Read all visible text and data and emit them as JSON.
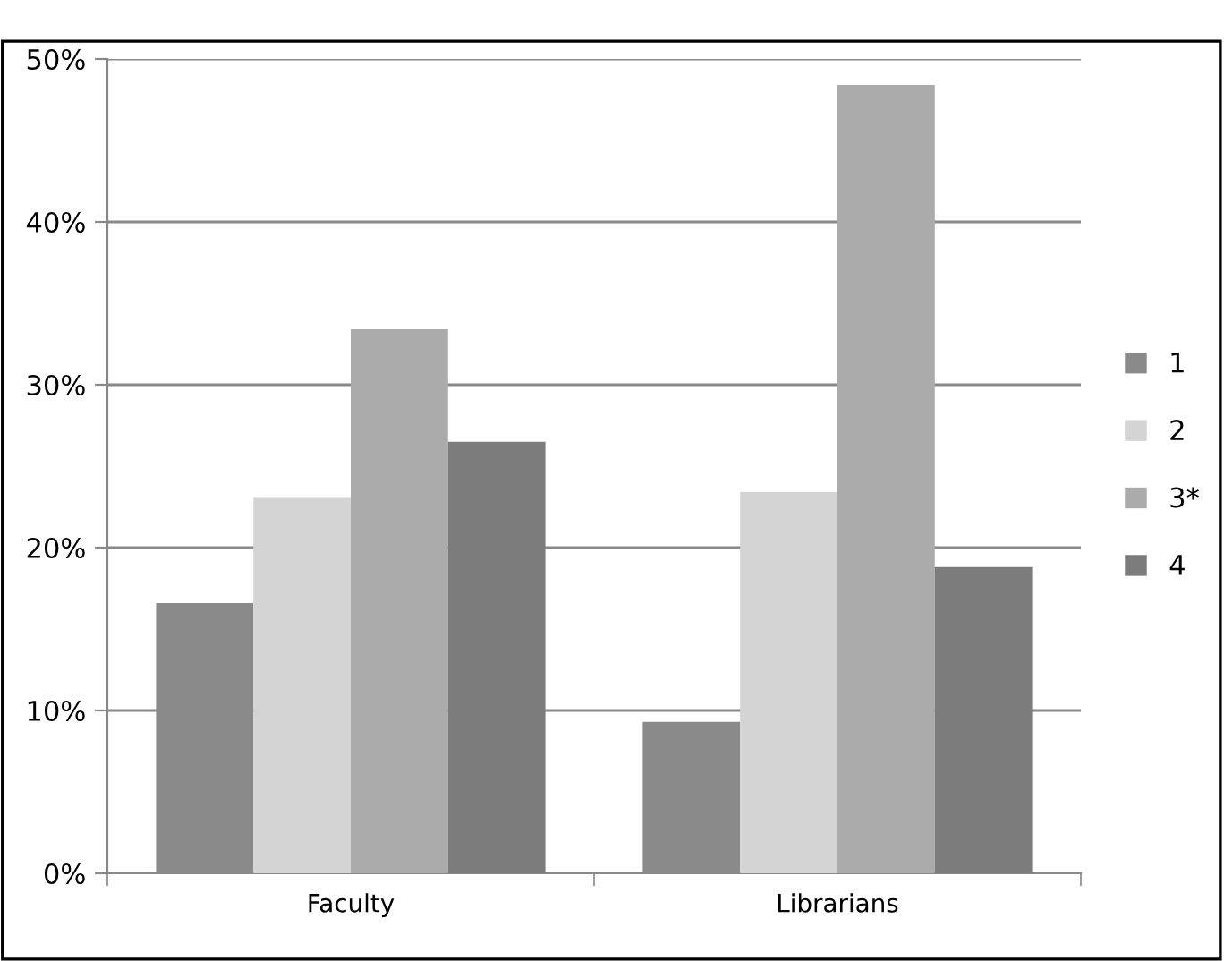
{
  "chart_data": {
    "type": "bar",
    "categories": [
      "Faculty",
      "Librarians"
    ],
    "series": [
      {
        "name": "1",
        "color": "#8a8a8a",
        "values": [
          16.6,
          9.3
        ]
      },
      {
        "name": "2",
        "color": "#d4d4d4",
        "values": [
          23.1,
          23.4
        ]
      },
      {
        "name": "3*",
        "color": "#ababab",
        "values": [
          33.4,
          48.4
        ]
      },
      {
        "name": "4",
        "color": "#7c7c7c",
        "values": [
          26.5,
          18.8
        ]
      }
    ],
    "ylim": [
      0,
      50
    ],
    "yticks": [
      {
        "value": 0,
        "label": "0%"
      },
      {
        "value": 10,
        "label": "10%"
      },
      {
        "value": 20,
        "label": "20%"
      },
      {
        "value": 30,
        "label": "30%"
      },
      {
        "value": 40,
        "label": "40%"
      },
      {
        "value": 50,
        "label": "50%"
      }
    ],
    "grid": "y",
    "legend": "right"
  }
}
